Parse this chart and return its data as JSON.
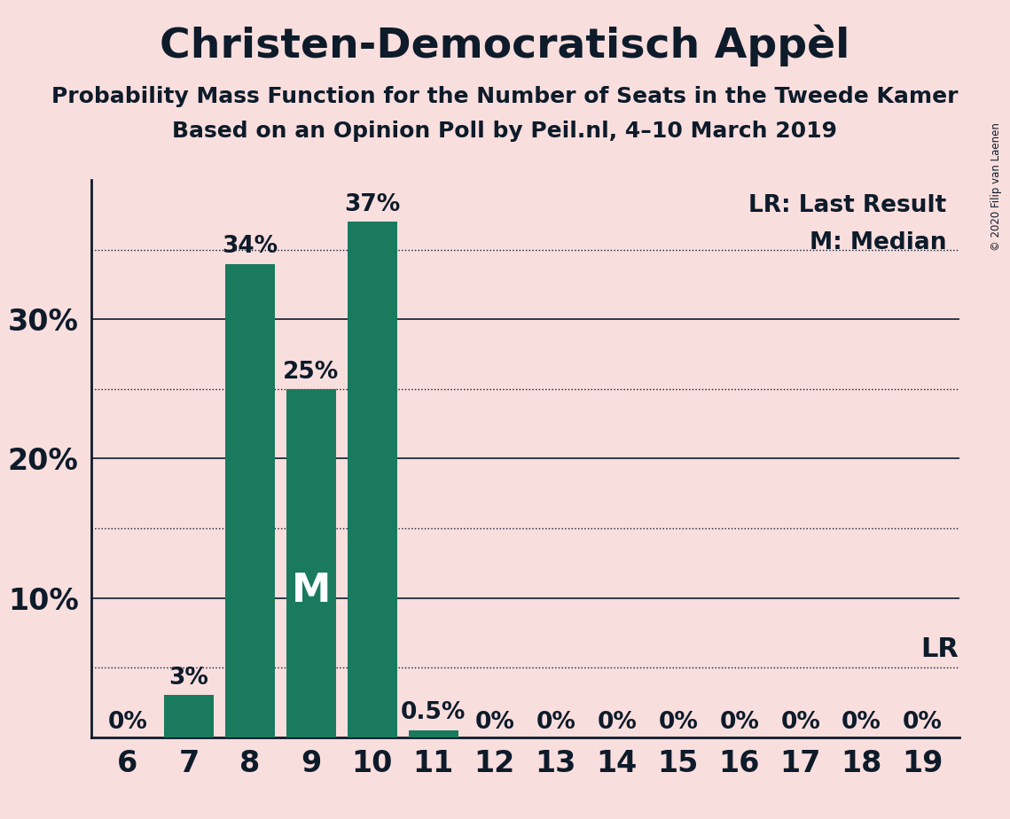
{
  "title": "Christen-Democratisch Appèl",
  "subtitle1": "Probability Mass Function for the Number of Seats in the Tweede Kamer",
  "subtitle2": "Based on an Opinion Poll by Peil.nl, 4–10 March 2019",
  "copyright": "© 2020 Filip van Laenen",
  "seats": [
    6,
    7,
    8,
    9,
    10,
    11,
    12,
    13,
    14,
    15,
    16,
    17,
    18,
    19
  ],
  "probabilities": [
    0.0,
    3.0,
    34.0,
    25.0,
    37.0,
    0.5,
    0.0,
    0.0,
    0.0,
    0.0,
    0.0,
    0.0,
    0.0,
    0.0
  ],
  "bar_color": "#1a7a5e",
  "background_color": "#f9dede",
  "text_color": "#0d1b2a",
  "median_seat": 9,
  "lr_value": 5.0,
  "bar_labels": [
    "0%",
    "3%",
    "34%",
    "25%",
    "37%",
    "0.5%",
    "0%",
    "0%",
    "0%",
    "0%",
    "0%",
    "0%",
    "0%",
    "0%"
  ],
  "yticks_solid": [
    10,
    20,
    30
  ],
  "yticks_dotted": [
    5,
    15,
    25,
    35
  ],
  "ylim": [
    0,
    40
  ],
  "legend_lr": "LR: Last Result",
  "legend_m": "M: Median"
}
